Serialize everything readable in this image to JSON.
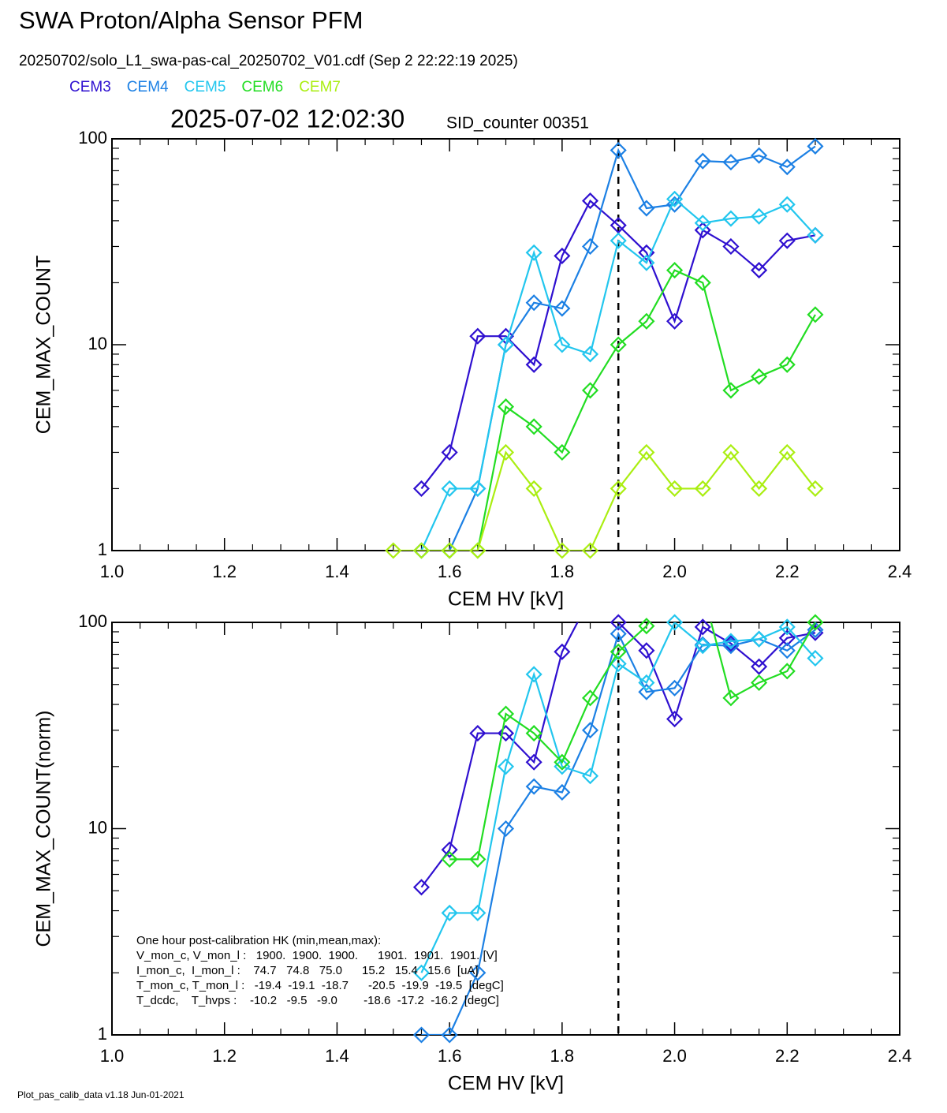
{
  "header": {
    "title": "SWA Proton/Alpha Sensor PFM",
    "subtitle": "20250702/solo_L1_swa-pas-cal_20250702_V01.cdf  (Sep  2 22:22:19 2025)",
    "timestamp": "2025-07-02 12:02:30",
    "counter": "SID_counter 00351",
    "footer": "Plot_pas_calib_data v1.18 Jun-01-2021"
  },
  "chart_data": [
    {
      "type": "line",
      "log_y": true,
      "marker": "diamond",
      "vline": 1.9,
      "x_label": "CEM HV [kV]",
      "y_label": "CEM_MAX_COUNT",
      "xlim": [
        1.0,
        2.4
      ],
      "xticks": [
        {
          "value": 1.0,
          "label": "1.0"
        },
        1.2,
        1.4,
        1.6,
        1.8,
        {
          "value": 2.0,
          "label": "2.0"
        },
        2.2,
        2.4
      ],
      "ylim": [
        1,
        100
      ],
      "yticks": [
        1,
        10,
        100
      ],
      "x": [
        1.5,
        1.55,
        1.6,
        1.65,
        1.7,
        1.75,
        1.8,
        1.85,
        1.9,
        1.95,
        2.0,
        2.05,
        2.1,
        2.15,
        2.2,
        2.25
      ],
      "series": [
        {
          "name": "CEM3",
          "color": "#2f10d0",
          "values": [
            null,
            2,
            3,
            11,
            11,
            8,
            27,
            50,
            38,
            28,
            13,
            36,
            30,
            23,
            32,
            34
          ]
        },
        {
          "name": "CEM4",
          "color": "#1c80e4",
          "values": [
            null,
            1,
            1,
            2,
            10,
            16,
            15,
            30,
            88,
            46,
            48,
            78,
            77,
            83,
            73,
            92
          ]
        },
        {
          "name": "CEM5",
          "color": "#22c6ee",
          "values": [
            null,
            1,
            2,
            2,
            10,
            28,
            10,
            9,
            32,
            25,
            51,
            39,
            41,
            42,
            48,
            34
          ]
        },
        {
          "name": "CEM6",
          "color": "#22dd22",
          "values": [
            null,
            null,
            1,
            1,
            5,
            4,
            3,
            6,
            10,
            13,
            23,
            20,
            6,
            7,
            8,
            14
          ]
        },
        {
          "name": "CEM7",
          "color": "#aaee11",
          "values": [
            1,
            1,
            1,
            1,
            3,
            2,
            1,
            1,
            2,
            3,
            2,
            2,
            3,
            2,
            3,
            2
          ]
        }
      ]
    },
    {
      "type": "line",
      "log_y": true,
      "marker": "diamond",
      "vline": 1.9,
      "x_label": "CEM HV [kV]",
      "y_label": "CEM_MAX_COUNT(norm)",
      "xlim": [
        1.0,
        2.4
      ],
      "xticks": [
        {
          "value": 1.0,
          "label": "1.0"
        },
        1.2,
        1.4,
        1.6,
        1.8,
        {
          "value": 2.0,
          "label": "2.0"
        },
        2.2,
        2.4
      ],
      "ylim": [
        1,
        100
      ],
      "yticks": [
        1,
        10,
        100
      ],
      "x": [
        1.5,
        1.55,
        1.6,
        1.65,
        1.7,
        1.75,
        1.8,
        1.85,
        1.9,
        1.95,
        2.0,
        2.05,
        2.1,
        2.15,
        2.2,
        2.25
      ],
      "series": [
        {
          "color": "#2f10d0",
          "values": [
            null,
            5.2,
            7.9,
            29,
            29,
            21,
            72,
            131,
            100,
            73,
            34,
            95,
            79,
            61,
            84,
            89
          ]
        },
        {
          "color": "#1c80e4",
          "values": [
            null,
            1,
            1,
            2,
            10,
            16,
            15,
            30,
            88,
            46,
            48,
            78,
            77,
            83,
            73,
            92
          ]
        },
        {
          "color": "#22c6ee",
          "values": [
            null,
            2,
            3.9,
            3.9,
            20,
            56,
            20,
            18,
            63,
            51,
            100,
            77,
            81,
            83,
            95,
            67
          ]
        },
        {
          "color": "#22dd22",
          "values": [
            null,
            null,
            7.1,
            7.1,
            36,
            29,
            21,
            43,
            72,
            96,
            164,
            143,
            43,
            51,
            58,
            100
          ]
        }
      ],
      "annotation": [
        "One hour post-calibration HK (min,mean,max):",
        "V_mon_c, V_mon_l :   1900.  1900.  1900.      1901.  1901.  1901. [V]",
        "I_mon_c,  I_mon_l :    74.7   74.8   75.0      15.2   15.4   15.6  [uA]",
        "T_mon_c, T_mon_l :   -19.4  -19.1  -18.7      -20.5  -19.9  -19.5  [degC]",
        "T_dcdc,    T_hvps :    -10.2   -9.5   -9.0        -18.6  -17.2  -16.2  [degC]"
      ]
    }
  ]
}
